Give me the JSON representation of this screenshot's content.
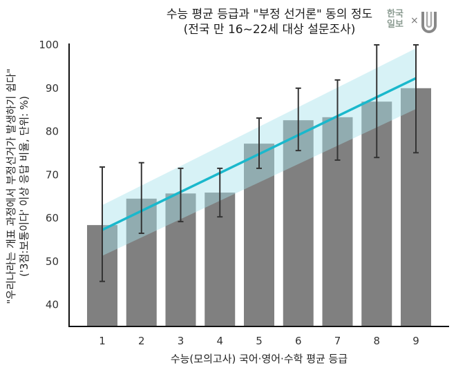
{
  "title": {
    "line1": "수능 평균 등급과 \"부정 선거론\" 동의 정도",
    "line2": "(전국 만 16~22세 대상 설문조사)"
  },
  "logo": {
    "brand_line1": "한국",
    "brand_line2": "일보",
    "separator": "×",
    "partner_icon": "u-magnet-logo-icon"
  },
  "colors": {
    "bar": "#808080",
    "error_bar": "#333333",
    "trend_line": "#1ab8cc",
    "confidence_band": "#a6e3ec",
    "axis": "#111111",
    "logo_text": "#8c9c92"
  },
  "chart_data": {
    "type": "bar",
    "title": "수능 평균 등급과 \"부정 선거론\" 동의 정도 (전국 만 16~22세 대상 설문조사)",
    "xlabel": "수능(모의고사) 국어·영어·수학 평균 등급",
    "ylabel_line1": "\"우리나라는 개표 과정에서 부정선거가 발생하기 쉽다\"",
    "ylabel_line2": "('3점:보통이다' 이상 응답 비율, 단위: %)",
    "categories": [
      "1",
      "2",
      "3",
      "4",
      "5",
      "6",
      "7",
      "8",
      "9"
    ],
    "values": [
      58.4,
      64.5,
      65.7,
      65.9,
      77.2,
      82.6,
      83.3,
      86.9,
      90.0
    ],
    "error_bars": {
      "upper": [
        71.8,
        72.8,
        71.5,
        71.5,
        83.1,
        90.0,
        91.9,
        100.0,
        100.0
      ],
      "lower": [
        45.4,
        56.5,
        59.2,
        60.3,
        71.5,
        75.6,
        73.4,
        74.0,
        75.1
      ]
    },
    "trend_line": {
      "type": "linear regression",
      "x": [
        1,
        9
      ],
      "y": [
        57.3,
        92.3
      ],
      "ci_upper": [
        63.0,
        99.2
      ],
      "ci_lower": [
        51.3,
        85.2
      ]
    },
    "yticks": [
      40,
      50,
      60,
      70,
      80,
      90,
      100
    ],
    "ylim": [
      35,
      100
    ],
    "grid": false,
    "legend": null
  }
}
